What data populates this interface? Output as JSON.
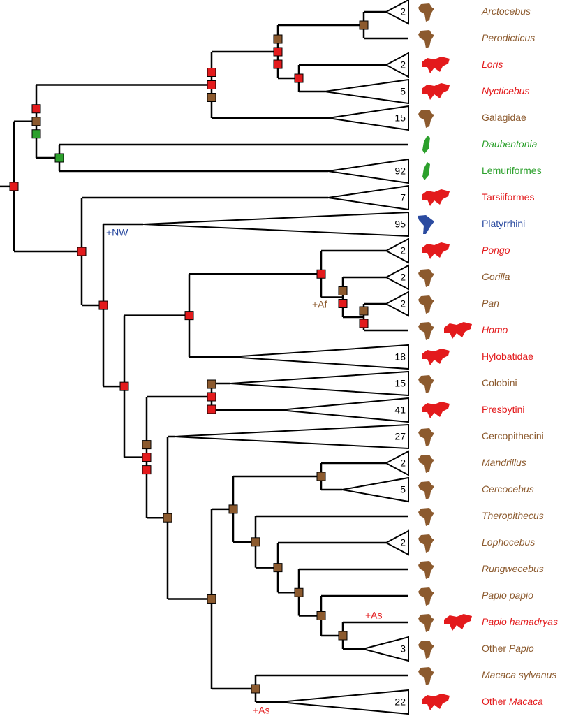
{
  "tips": [
    {
      "label": "Arctocebus",
      "count": 2
    },
    {
      "label": "Perodicticus"
    },
    {
      "label": "Loris",
      "count": 2
    },
    {
      "label": "Nycticebus",
      "count": 5
    },
    {
      "label": "Galagidae",
      "count": 15
    },
    {
      "label": "Daubentonia"
    },
    {
      "label": "Lemuriformes",
      "count": 92
    },
    {
      "label": "Tarsiiformes",
      "count": 7
    },
    {
      "label": "Platyrrhini",
      "count": 95
    },
    {
      "label": "Pongo",
      "count": 2
    },
    {
      "label": "Gorilla",
      "count": 2
    },
    {
      "label": "Pan",
      "count": 2
    },
    {
      "label": "Homo"
    },
    {
      "label": "Hylobatidae",
      "count": 18
    },
    {
      "label": "Colobini",
      "count": 15
    },
    {
      "label": "Presbytini",
      "count": 41
    },
    {
      "label": "Cercopithecini",
      "count": 27
    },
    {
      "label": "Mandrillus",
      "count": 2
    },
    {
      "label": "Cercocebus",
      "count": 5
    },
    {
      "label": "Theropithecus"
    },
    {
      "label": "Lophocebus",
      "count": 2
    },
    {
      "label": "Rungwecebus"
    },
    {
      "label": "Papio papio"
    },
    {
      "label": "Papio hamadryas"
    },
    {
      "label": "Other",
      "genus": "Papio",
      "count": 3
    },
    {
      "label": "Macaca sylvanus"
    },
    {
      "label": "Other",
      "genus": "Macaca",
      "count": 22
    }
  ],
  "annotations": [
    {
      "text": "+NW"
    },
    {
      "text": "+Af"
    },
    {
      "text": "+As"
    },
    {
      "text": "+As"
    }
  ]
}
